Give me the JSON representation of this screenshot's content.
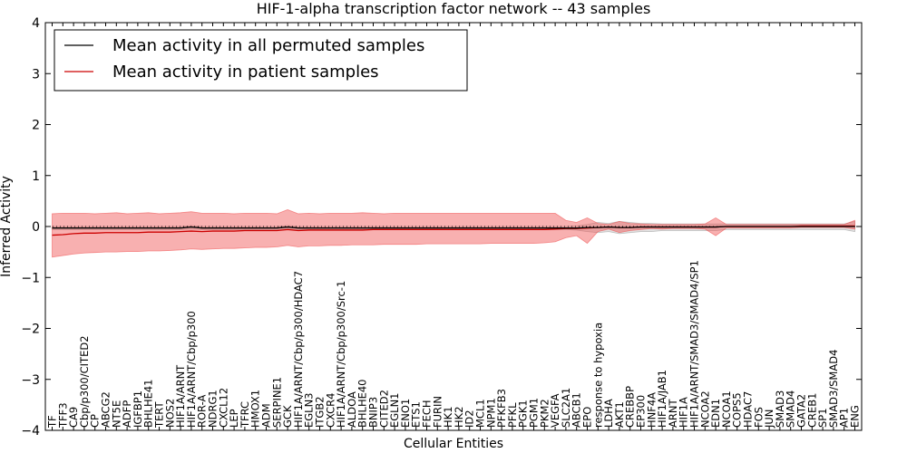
{
  "chart_data": {
    "type": "line",
    "title": "HIF-1-alpha transcription factor network -- 43 samples",
    "xlabel": "Cellular Entities",
    "ylabel": "Inferred Activity",
    "ylim": [
      -4,
      4
    ],
    "yticks": [
      -4,
      -3,
      -2,
      -1,
      0,
      1,
      2,
      3,
      4
    ],
    "legend_position": "top-left",
    "categories": [
      "TF",
      "TFF3",
      "CA9",
      "Cbp/p300/CITED2",
      "CP",
      "ABCG2",
      "NT5E",
      "ADFP",
      "IGFBP1",
      "BHLHE41",
      "TERT",
      "NOS2",
      "HIF1A/ARNT",
      "HIF1A/ARNT/Cbp/p300",
      "ROR-A",
      "NDRG1",
      "CXCL12",
      "LEP",
      "TFRC",
      "HMOX1",
      "ADM",
      "SERPINE1",
      "GCK",
      "HIF1A/ARNT/Cbp/p300/HDAC7",
      "EGLN3",
      "ITGB2",
      "CXCR4",
      "HIF1A/ARNT/Cbp/p300/Src-1",
      "ALDOA",
      "BHLHE40",
      "BNIP3",
      "CITED2",
      "EGLN1",
      "ENO1",
      "ETS1",
      "FECH",
      "FURIN",
      "HK1",
      "HK2",
      "ID2",
      "MCL1",
      "NPM1",
      "PFKFB3",
      "PFKL",
      "PGK1",
      "PGM1",
      "PKM2",
      "VEGFA",
      "SLC2A1",
      "ABCB1",
      "EPO",
      "response to hypoxia",
      "LDHA",
      "AKT1",
      "CREBBP",
      "EP300",
      "HNF4A",
      "HIF1A/JAB1",
      "ARNT",
      "HIF1A",
      "HIF1A/ARNT/SMAD3/SMAD4/SP1",
      "NCOA2",
      "EDN1",
      "NCOA1",
      "COPS5",
      "HDAC7",
      "FOS",
      "JUN",
      "SMAD3",
      "SMAD4",
      "GATA2",
      "CREB1",
      "SP1",
      "SMAD3/SMAD4",
      "AP1",
      "ENG"
    ],
    "series": [
      {
        "name": "Mean activity in all permuted samples",
        "color": "#000000",
        "values": [
          -0.03,
          -0.03,
          -0.03,
          -0.03,
          -0.03,
          -0.03,
          -0.03,
          -0.03,
          -0.03,
          -0.03,
          -0.03,
          -0.03,
          -0.03,
          -0.01,
          -0.03,
          -0.03,
          -0.03,
          -0.03,
          -0.03,
          -0.03,
          -0.03,
          -0.03,
          -0.01,
          -0.03,
          -0.03,
          -0.03,
          -0.03,
          -0.03,
          -0.03,
          -0.03,
          -0.03,
          -0.03,
          -0.03,
          -0.03,
          -0.03,
          -0.03,
          -0.03,
          -0.03,
          -0.03,
          -0.03,
          -0.03,
          -0.03,
          -0.03,
          -0.03,
          -0.03,
          -0.03,
          -0.03,
          -0.03,
          -0.03,
          -0.03,
          -0.02,
          -0.02,
          -0.01,
          -0.02,
          -0.02,
          -0.01,
          -0.01,
          -0.01,
          -0.01,
          -0.01,
          -0.01,
          -0.01,
          -0.01,
          0.0,
          0.0,
          0.0,
          0.0,
          0.0,
          0.0,
          0.0,
          0.0,
          0.0,
          0.0,
          0.0,
          0.0,
          0.0
        ],
        "band_lower": [
          -0.06,
          -0.06,
          -0.06,
          -0.06,
          -0.06,
          -0.06,
          -0.06,
          -0.06,
          -0.06,
          -0.06,
          -0.06,
          -0.06,
          -0.06,
          -0.05,
          -0.06,
          -0.06,
          -0.06,
          -0.06,
          -0.06,
          -0.06,
          -0.06,
          -0.06,
          -0.05,
          -0.06,
          -0.06,
          -0.06,
          -0.06,
          -0.06,
          -0.06,
          -0.06,
          -0.06,
          -0.06,
          -0.06,
          -0.06,
          -0.06,
          -0.06,
          -0.06,
          -0.06,
          -0.06,
          -0.06,
          -0.06,
          -0.06,
          -0.06,
          -0.06,
          -0.06,
          -0.06,
          -0.06,
          -0.06,
          -0.06,
          -0.07,
          -0.1,
          -0.12,
          -0.1,
          -0.14,
          -0.12,
          -0.1,
          -0.1,
          -0.08,
          -0.08,
          -0.08,
          -0.08,
          -0.08,
          -0.08,
          -0.06,
          -0.06,
          -0.06,
          -0.06,
          -0.06,
          -0.06,
          -0.06,
          -0.06,
          -0.06,
          -0.06,
          -0.06,
          -0.06,
          -0.1
        ],
        "band_upper": [
          0.0,
          0.0,
          0.0,
          0.0,
          0.0,
          0.0,
          0.0,
          0.0,
          0.0,
          0.0,
          0.0,
          0.0,
          0.0,
          0.02,
          0.0,
          0.0,
          0.0,
          0.0,
          0.0,
          0.0,
          0.0,
          0.0,
          0.02,
          0.0,
          0.0,
          0.0,
          0.0,
          0.0,
          0.0,
          0.0,
          0.0,
          0.0,
          0.0,
          0.0,
          0.0,
          0.0,
          0.0,
          0.0,
          0.0,
          0.0,
          0.0,
          0.0,
          0.0,
          0.0,
          0.0,
          0.0,
          0.0,
          0.0,
          0.0,
          0.01,
          0.04,
          0.08,
          0.06,
          0.1,
          0.08,
          0.06,
          0.06,
          0.05,
          0.05,
          0.05,
          0.05,
          0.05,
          0.05,
          0.05,
          0.05,
          0.05,
          0.05,
          0.05,
          0.05,
          0.05,
          0.05,
          0.05,
          0.05,
          0.05,
          0.05,
          0.1
        ]
      },
      {
        "name": "Mean activity in patient samples",
        "color": "#cc0000",
        "values": [
          -0.17,
          -0.16,
          -0.14,
          -0.13,
          -0.13,
          -0.12,
          -0.12,
          -0.12,
          -0.12,
          -0.11,
          -0.11,
          -0.11,
          -0.1,
          -0.09,
          -0.1,
          -0.09,
          -0.09,
          -0.09,
          -0.08,
          -0.08,
          -0.08,
          -0.08,
          -0.06,
          -0.08,
          -0.07,
          -0.07,
          -0.07,
          -0.07,
          -0.07,
          -0.07,
          -0.06,
          -0.06,
          -0.06,
          -0.06,
          -0.06,
          -0.06,
          -0.06,
          -0.06,
          -0.06,
          -0.06,
          -0.06,
          -0.06,
          -0.06,
          -0.06,
          -0.06,
          -0.06,
          -0.06,
          -0.05,
          -0.04,
          -0.04,
          -0.03,
          -0.02,
          -0.01,
          -0.02,
          -0.02,
          -0.01,
          -0.01,
          -0.01,
          -0.01,
          -0.01,
          -0.01,
          -0.01,
          -0.01,
          0.0,
          0.0,
          0.0,
          0.0,
          0.0,
          0.0,
          0.0,
          0.01,
          0.01,
          0.01,
          0.01,
          0.01,
          0.01
        ],
        "band_lower": [
          -0.6,
          -0.57,
          -0.54,
          -0.52,
          -0.51,
          -0.5,
          -0.5,
          -0.49,
          -0.49,
          -0.48,
          -0.48,
          -0.47,
          -0.46,
          -0.44,
          -0.45,
          -0.44,
          -0.43,
          -0.43,
          -0.42,
          -0.41,
          -0.41,
          -0.4,
          -0.37,
          -0.4,
          -0.38,
          -0.38,
          -0.37,
          -0.37,
          -0.36,
          -0.36,
          -0.36,
          -0.35,
          -0.35,
          -0.35,
          -0.35,
          -0.34,
          -0.34,
          -0.34,
          -0.34,
          -0.34,
          -0.34,
          -0.33,
          -0.33,
          -0.33,
          -0.33,
          -0.33,
          -0.32,
          -0.3,
          -0.22,
          -0.18,
          -0.33,
          -0.1,
          -0.05,
          -0.12,
          -0.08,
          -0.06,
          -0.04,
          -0.05,
          -0.04,
          -0.04,
          -0.04,
          -0.05,
          -0.18,
          -0.03,
          -0.03,
          -0.03,
          -0.03,
          -0.03,
          -0.03,
          -0.03,
          -0.02,
          -0.02,
          -0.02,
          -0.02,
          -0.02,
          -0.05
        ],
        "band_upper": [
          0.25,
          0.26,
          0.26,
          0.26,
          0.25,
          0.26,
          0.27,
          0.25,
          0.26,
          0.27,
          0.25,
          0.26,
          0.27,
          0.29,
          0.26,
          0.26,
          0.26,
          0.25,
          0.26,
          0.26,
          0.26,
          0.25,
          0.33,
          0.25,
          0.26,
          0.25,
          0.26,
          0.26,
          0.26,
          0.27,
          0.26,
          0.25,
          0.26,
          0.26,
          0.26,
          0.26,
          0.26,
          0.26,
          0.26,
          0.26,
          0.26,
          0.26,
          0.26,
          0.26,
          0.26,
          0.26,
          0.26,
          0.26,
          0.12,
          0.08,
          0.17,
          0.06,
          0.04,
          0.1,
          0.06,
          0.05,
          0.04,
          0.04,
          0.04,
          0.04,
          0.04,
          0.05,
          0.17,
          0.04,
          0.04,
          0.04,
          0.04,
          0.04,
          0.04,
          0.04,
          0.04,
          0.04,
          0.04,
          0.04,
          0.04,
          0.12
        ]
      }
    ],
    "reference_line": 0
  }
}
